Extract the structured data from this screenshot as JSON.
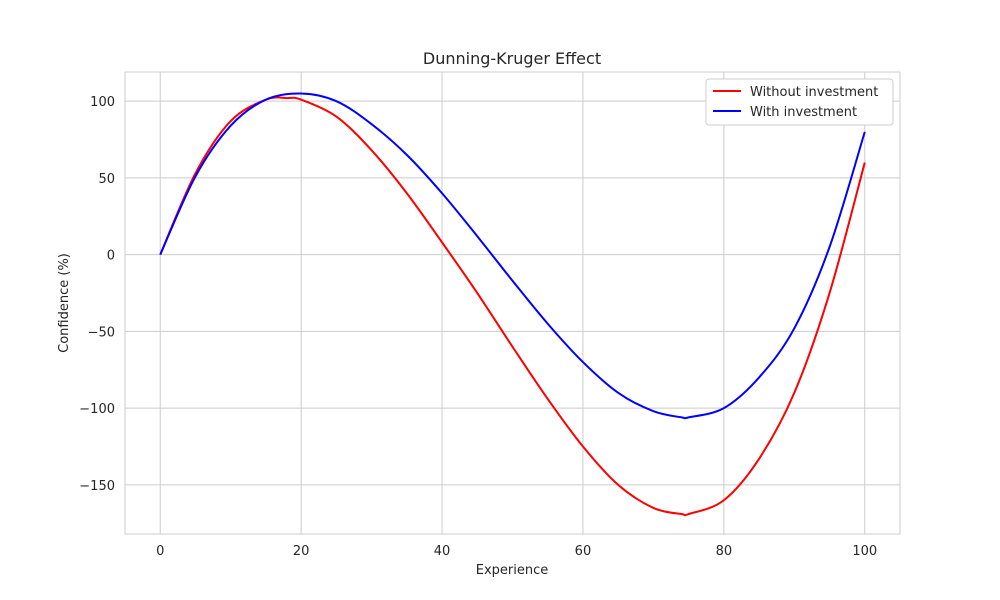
{
  "chart_data": {
    "type": "line",
    "title": "Dunning-Kruger Effect",
    "xlabel": "Experience",
    "ylabel": "Confidence (%)",
    "xlim": [
      -5,
      105
    ],
    "ylim": [
      -182,
      119
    ],
    "xticks": [
      0,
      20,
      40,
      60,
      80,
      100
    ],
    "yticks": [
      -150,
      -100,
      -50,
      0,
      50,
      100
    ],
    "grid": true,
    "legend_position": "top-right",
    "series": [
      {
        "name": "Without investment",
        "color": "#ff0000",
        "x": [
          0,
          5,
          10,
          15,
          18,
          20,
          25,
          30,
          35,
          40,
          45,
          50,
          55,
          60,
          65,
          70,
          74,
          75,
          80,
          85,
          90,
          95,
          100
        ],
        "y": [
          0,
          53,
          87,
          101,
          102,
          101,
          90,
          68,
          40,
          8,
          -25,
          -60,
          -94,
          -125,
          -150,
          -165,
          -169,
          -169,
          -160,
          -133,
          -90,
          -25,
          60
        ]
      },
      {
        "name": "With investment",
        "color": "#0000ff",
        "x": [
          0,
          5,
          10,
          15,
          20,
          25,
          30,
          35,
          40,
          45,
          50,
          55,
          60,
          65,
          70,
          74,
          75,
          80,
          85,
          90,
          95,
          100
        ],
        "y": [
          0,
          51,
          84,
          101,
          105,
          100,
          85,
          65,
          40,
          12,
          -17,
          -45,
          -70,
          -90,
          -102,
          -106,
          -106,
          -100,
          -80,
          -48,
          5,
          80
        ]
      }
    ]
  }
}
